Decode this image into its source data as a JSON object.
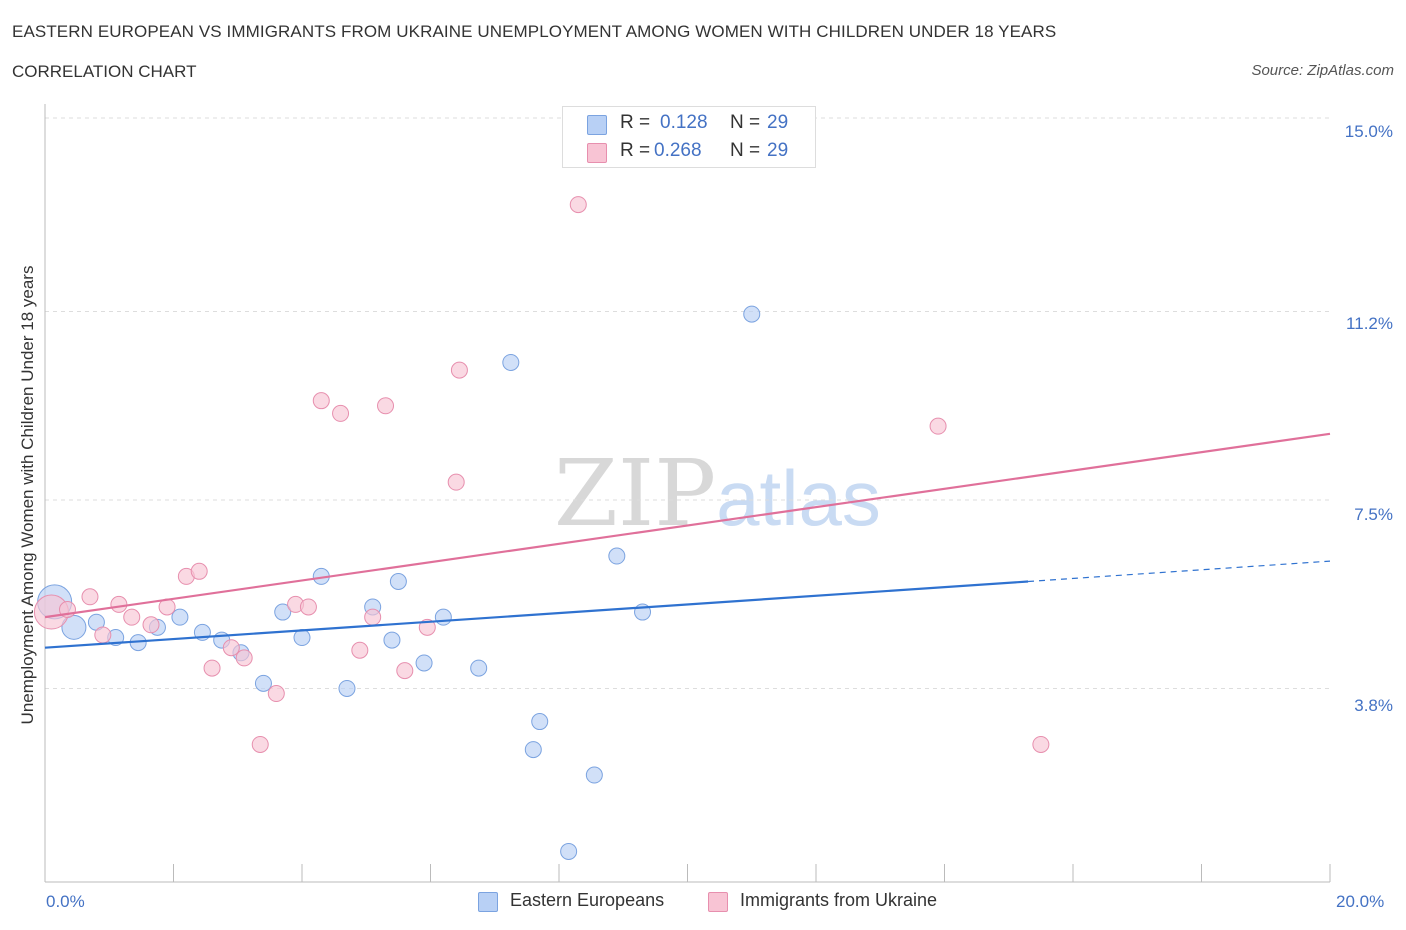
{
  "header": {
    "title": "EASTERN EUROPEAN VS IMMIGRANTS FROM UKRAINE UNEMPLOYMENT AMONG WOMEN WITH CHILDREN UNDER 18 YEARS",
    "subtitle": "CORRELATION CHART",
    "source": "Source: ZipAtlas.com"
  },
  "watermark": {
    "zip": "ZIP",
    "atlas": "atlas"
  },
  "legend": {
    "rows": [
      {
        "r_label": "R =",
        "r_value": "0.128",
        "n_label": "N =",
        "n_value": "29",
        "color": "#b8d0f5",
        "border": "#7ba3e0"
      },
      {
        "r_label": "R =",
        "r_value": "0.268",
        "n_label": "N =",
        "n_value": "29",
        "color": "#f8c4d4",
        "border": "#e78fae"
      }
    ]
  },
  "bottom_legend": [
    {
      "label": "Eastern Europeans",
      "color": "#b8d0f5",
      "border": "#7ba3e0"
    },
    {
      "label": "Immigrants from Ukraine",
      "color": "#f8c4d4",
      "border": "#e78fae"
    }
  ],
  "colors": {
    "blue_line": "#2f72d0",
    "pink_line": "#e0709a",
    "blue_fill": "#b8d0f5",
    "pink_fill": "#f8c4d4",
    "axis_text": "#4472c4",
    "grid": "#dddddd"
  },
  "chart_data": {
    "type": "scatter",
    "title": "EASTERN EUROPEAN VS IMMIGRANTS FROM UKRAINE UNEMPLOYMENT AMONG WOMEN WITH CHILDREN UNDER 18 YEARS",
    "subtitle": "CORRELATION CHART",
    "xlabel": "",
    "ylabel": "Unemployment Among Women with Children Under 18 years",
    "xlim": [
      0,
      20
    ],
    "ylim": [
      0,
      15
    ],
    "x_ticks": [
      "0.0%",
      "20.0%"
    ],
    "y_ticks": [
      {
        "value": 3.8,
        "label": "3.8%"
      },
      {
        "value": 7.5,
        "label": "7.5%"
      },
      {
        "value": 11.2,
        "label": "11.2%"
      },
      {
        "value": 15.0,
        "label": "15.0%"
      }
    ],
    "grid": true,
    "legend_position": "top-center",
    "series": [
      {
        "name": "Eastern Europeans",
        "color": "#b8d0f5",
        "points": [
          {
            "x": 0.15,
            "y": 5.5,
            "size": "large"
          },
          {
            "x": 0.45,
            "y": 5.0,
            "size": "medium"
          },
          {
            "x": 0.8,
            "y": 5.1
          },
          {
            "x": 1.1,
            "y": 4.8
          },
          {
            "x": 1.45,
            "y": 4.7
          },
          {
            "x": 1.75,
            "y": 5.0
          },
          {
            "x": 2.1,
            "y": 5.2
          },
          {
            "x": 2.45,
            "y": 4.9
          },
          {
            "x": 2.75,
            "y": 4.75
          },
          {
            "x": 3.05,
            "y": 4.5
          },
          {
            "x": 3.4,
            "y": 3.9
          },
          {
            "x": 3.7,
            "y": 5.3
          },
          {
            "x": 4.0,
            "y": 4.8
          },
          {
            "x": 4.3,
            "y": 6.0
          },
          {
            "x": 4.7,
            "y": 3.8
          },
          {
            "x": 5.1,
            "y": 5.4
          },
          {
            "x": 5.4,
            "y": 4.75
          },
          {
            "x": 5.5,
            "y": 5.9
          },
          {
            "x": 5.9,
            "y": 4.3
          },
          {
            "x": 6.2,
            "y": 5.2
          },
          {
            "x": 6.75,
            "y": 4.2
          },
          {
            "x": 7.25,
            "y": 10.2
          },
          {
            "x": 7.6,
            "y": 2.6
          },
          {
            "x": 7.7,
            "y": 3.15
          },
          {
            "x": 8.15,
            "y": 0.6
          },
          {
            "x": 8.55,
            "y": 2.1
          },
          {
            "x": 8.9,
            "y": 6.4
          },
          {
            "x": 9.3,
            "y": 5.3
          },
          {
            "x": 11.0,
            "y": 11.15
          }
        ],
        "trend": {
          "x0": 0,
          "y0": 4.6,
          "x1": 15.3,
          "y1": 5.9,
          "dash_to_x": 20,
          "dash_to_y": 6.3
        }
      },
      {
        "name": "Immigrants from Ukraine",
        "color": "#f8c4d4",
        "points": [
          {
            "x": 0.1,
            "y": 5.3,
            "size": "large"
          },
          {
            "x": 0.35,
            "y": 5.35
          },
          {
            "x": 0.7,
            "y": 5.6
          },
          {
            "x": 0.9,
            "y": 4.85
          },
          {
            "x": 1.15,
            "y": 5.45
          },
          {
            "x": 1.35,
            "y": 5.2
          },
          {
            "x": 1.65,
            "y": 5.05
          },
          {
            "x": 1.9,
            "y": 5.4
          },
          {
            "x": 2.2,
            "y": 6.0
          },
          {
            "x": 2.4,
            "y": 6.1
          },
          {
            "x": 2.6,
            "y": 4.2
          },
          {
            "x": 2.9,
            "y": 4.6
          },
          {
            "x": 3.1,
            "y": 4.4
          },
          {
            "x": 3.35,
            "y": 2.7
          },
          {
            "x": 3.6,
            "y": 3.7
          },
          {
            "x": 3.9,
            "y": 5.45
          },
          {
            "x": 4.1,
            "y": 5.4
          },
          {
            "x": 4.3,
            "y": 9.45
          },
          {
            "x": 4.6,
            "y": 9.2
          },
          {
            "x": 4.9,
            "y": 4.55
          },
          {
            "x": 5.1,
            "y": 5.2
          },
          {
            "x": 5.3,
            "y": 9.35
          },
          {
            "x": 5.6,
            "y": 4.15
          },
          {
            "x": 5.95,
            "y": 5.0
          },
          {
            "x": 6.4,
            "y": 7.85
          },
          {
            "x": 6.45,
            "y": 10.05
          },
          {
            "x": 8.3,
            "y": 13.3
          },
          {
            "x": 13.9,
            "y": 8.95
          },
          {
            "x": 15.5,
            "y": 2.7
          }
        ],
        "trend": {
          "x0": 0,
          "y0": 5.2,
          "x1": 20,
          "y1": 8.8
        }
      }
    ]
  }
}
